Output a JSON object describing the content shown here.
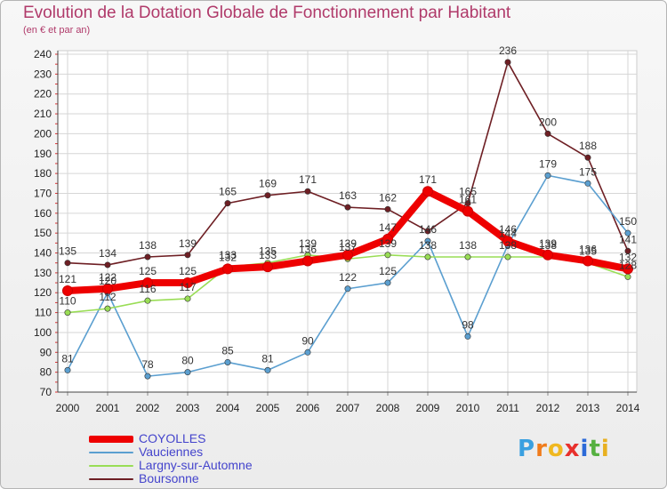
{
  "header": {
    "title": "Evolution de la Dotation Globale de Fonctionnement par Habitant",
    "subtitle": "(en € et par an)"
  },
  "brand": {
    "letters": [
      "P",
      "r",
      "o",
      "x",
      "i",
      "t",
      "i"
    ],
    "colors": [
      "#3aa0e0",
      "#f07c1c",
      "#f0b820",
      "#e8302c",
      "#2c6ad8",
      "#55b040",
      "#e8b020"
    ]
  },
  "colors": {
    "title": "#b03a6a",
    "axis_text": "#222222",
    "grid": "#d6d6d6",
    "legend_text": "#4444cc"
  },
  "chart_data": {
    "type": "line",
    "x": [
      "2000",
      "2001",
      "2002",
      "2003",
      "2004",
      "2005",
      "2006",
      "2007",
      "2008",
      "2009",
      "2010",
      "2011",
      "2012",
      "2013",
      "2014"
    ],
    "ylim": [
      70,
      240
    ],
    "yticks": [
      70,
      80,
      90,
      100,
      110,
      120,
      130,
      140,
      150,
      160,
      170,
      180,
      190,
      200,
      210,
      220,
      230,
      240
    ],
    "grid": true,
    "legend_position": "bottom-left",
    "series": [
      {
        "name": "Boursonne",
        "color": "#6e1f24",
        "values": [
          135,
          134,
          138,
          139,
          165,
          169,
          171,
          163,
          162,
          151,
          165,
          236,
          200,
          188,
          141
        ],
        "labels": [
          "135",
          "134",
          "138",
          "139",
          "165",
          "169",
          "171",
          "163",
          "162",
          "",
          "165",
          "236",
          "200",
          "188",
          "141"
        ]
      },
      {
        "name": "Vauciennes",
        "color": "#5b9fd0",
        "values": [
          81,
          120,
          78,
          80,
          85,
          81,
          90,
          122,
          125,
          146,
          98,
          144,
          179,
          175,
          150
        ],
        "labels": [
          "81",
          "120",
          "78",
          "80",
          "85",
          "81",
          "90",
          "122",
          "125",
          "146",
          "98",
          "144",
          "179",
          "175",
          "150"
        ]
      },
      {
        "name": "Largny-sur-Automne",
        "color": "#99dd55",
        "values": [
          110,
          112,
          116,
          117,
          133,
          135,
          139,
          137,
          139,
          138,
          138,
          138,
          138,
          135,
          128
        ],
        "labels": [
          "110",
          "112",
          "116",
          "117",
          "133",
          "135",
          "139",
          "137",
          "139",
          "138",
          "138",
          "138",
          "138",
          "135",
          "128"
        ]
      },
      {
        "name": "COYOLLES",
        "color": "#ee0000",
        "values": [
          121,
          122,
          125,
          125,
          132,
          133,
          136,
          139,
          147,
          171,
          161,
          146,
          139,
          136,
          132
        ],
        "labels": [
          "121",
          "122",
          "125",
          "125",
          "132",
          "133",
          "136",
          "139",
          "147",
          "171",
          "161",
          "146",
          "139",
          "136",
          "132"
        ]
      }
    ],
    "legend": [
      {
        "name": "COYOLLES",
        "color": "#ee0000"
      },
      {
        "name": "Vauciennes",
        "color": "#5b9fd0"
      },
      {
        "name": "Largny-sur-Automne",
        "color": "#99dd55"
      },
      {
        "name": "Boursonne",
        "color": "#6e1f24"
      }
    ]
  }
}
